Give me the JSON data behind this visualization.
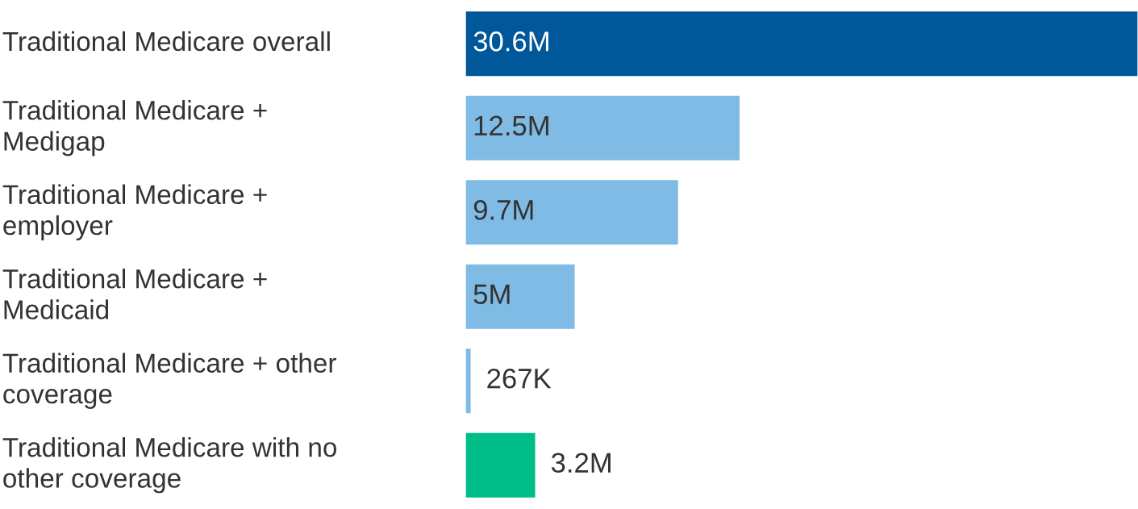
{
  "chart_data": {
    "type": "bar",
    "orientation": "horizontal",
    "categories": [
      "Traditional Medicare overall",
      "Traditional Medicare +\nMedigap",
      "Traditional Medicare +\nemployer",
      "Traditional Medicare +\nMedicaid",
      "Traditional Medicare + other\ncoverage",
      "Traditional Medicare with no\nother coverage"
    ],
    "values": [
      30600000,
      12500000,
      9700000,
      5000000,
      267000,
      3200000
    ],
    "value_labels": [
      "30.6M",
      "12.5M",
      "9.7M",
      "5M",
      "267K",
      "3.2M"
    ],
    "colors": [
      "#00579a",
      "#7fbbe4",
      "#7fbbe4",
      "#7fbbe4",
      "#7fbbe4",
      "#00be8a"
    ],
    "legend": false
  }
}
